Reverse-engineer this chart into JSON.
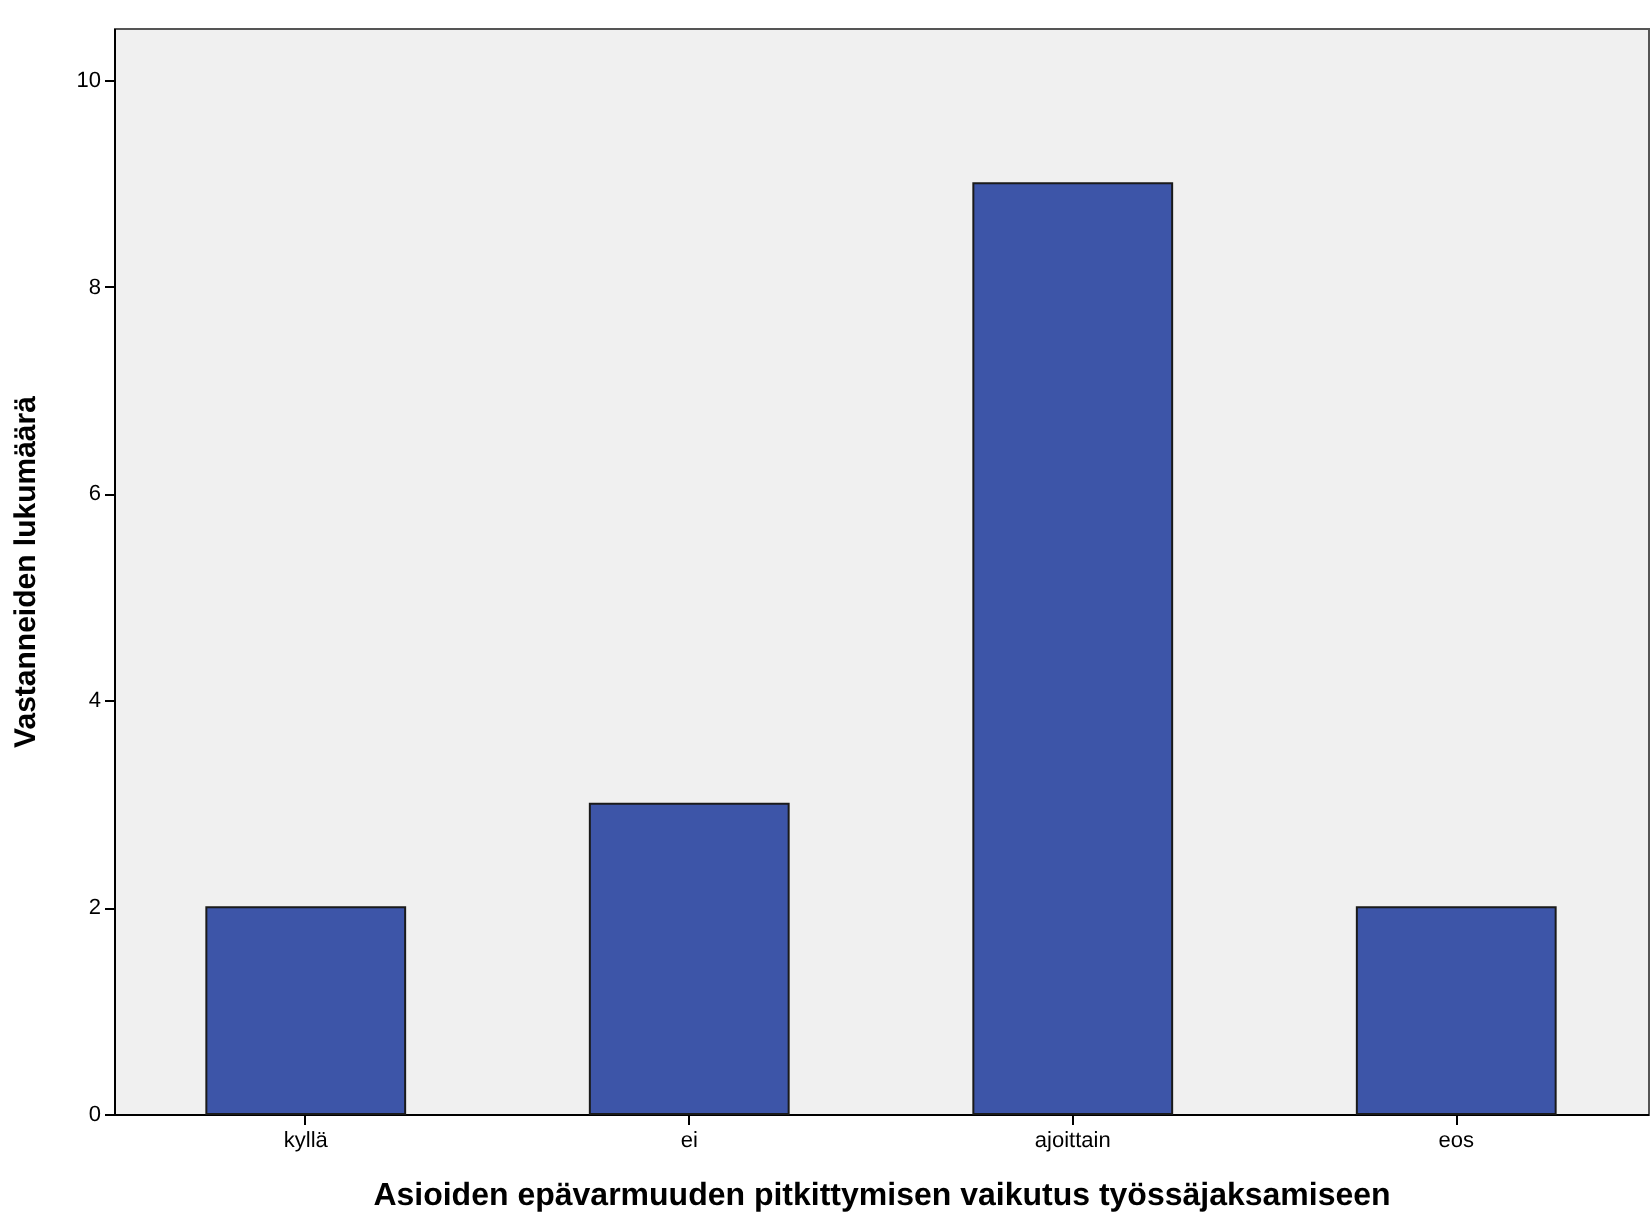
{
  "chart_data": {
    "type": "bar",
    "xlabel": "Asioiden epävarmuuden pitkittymisen vaikutus työssäjaksamiseen",
    "ylabel": "Vastanneiden lukumäärä",
    "categories": [
      "kyllä",
      "ei",
      "ajoittain",
      "eos"
    ],
    "values": [
      2,
      3,
      9,
      2
    ],
    "color": "#3d55a8",
    "ylim": [
      0,
      10.5
    ],
    "yticks": [
      0,
      2,
      4,
      6,
      8,
      10
    ],
    "grid": false
  }
}
